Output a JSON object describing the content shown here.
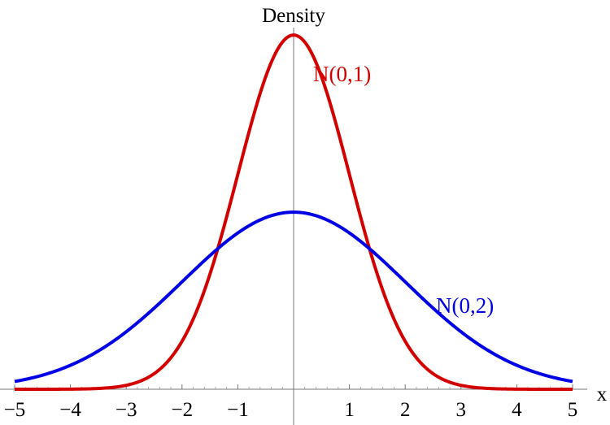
{
  "chart_data": {
    "type": "line",
    "ylabel": "Density",
    "xlabel": "x",
    "xlim": [
      -5,
      5
    ],
    "ylim": [
      0,
      0.4
    ],
    "x_ticks": [
      -5,
      -4,
      -3,
      -2,
      -1,
      1,
      2,
      3,
      4,
      5
    ],
    "x_tick_labels": [
      "−5",
      "−4",
      "−3",
      "−2",
      "−1",
      "1",
      "2",
      "3",
      "4",
      "5"
    ],
    "grid": false,
    "series": [
      {
        "name": "N(0,1)",
        "distribution": "normal",
        "mean": 0,
        "sd": 1,
        "color": "#d40000",
        "x": [
          -5,
          -4.5,
          -4,
          -3.5,
          -3,
          -2.5,
          -2,
          -1.5,
          -1,
          -0.5,
          0,
          0.5,
          1,
          1.5,
          2,
          2.5,
          3,
          3.5,
          4,
          4.5,
          5
        ],
        "y": [
          1.5e-06,
          1.6e-05,
          0.000134,
          0.000873,
          0.00443,
          0.0175,
          0.054,
          0.1295,
          0.242,
          0.3521,
          0.3989,
          0.3521,
          0.242,
          0.1295,
          0.054,
          0.0175,
          0.00443,
          0.000873,
          0.000134,
          1.6e-05,
          1.5e-06
        ]
      },
      {
        "name": "N(0,2)",
        "distribution": "normal",
        "mean": 0,
        "sd": 2,
        "color": "#0000e6",
        "x": [
          -5,
          -4.5,
          -4,
          -3.5,
          -3,
          -2.5,
          -2,
          -1.5,
          -1,
          -0.5,
          0,
          0.5,
          1,
          1.5,
          2,
          2.5,
          3,
          3.5,
          4,
          4.5,
          5
        ],
        "y": [
          0.00876,
          0.01585,
          0.027,
          0.0431,
          0.0648,
          0.0913,
          0.121,
          0.1506,
          0.176,
          0.1933,
          0.1995,
          0.1933,
          0.176,
          0.1506,
          0.121,
          0.0913,
          0.0648,
          0.0431,
          0.027,
          0.01585,
          0.00876
        ]
      }
    ]
  }
}
